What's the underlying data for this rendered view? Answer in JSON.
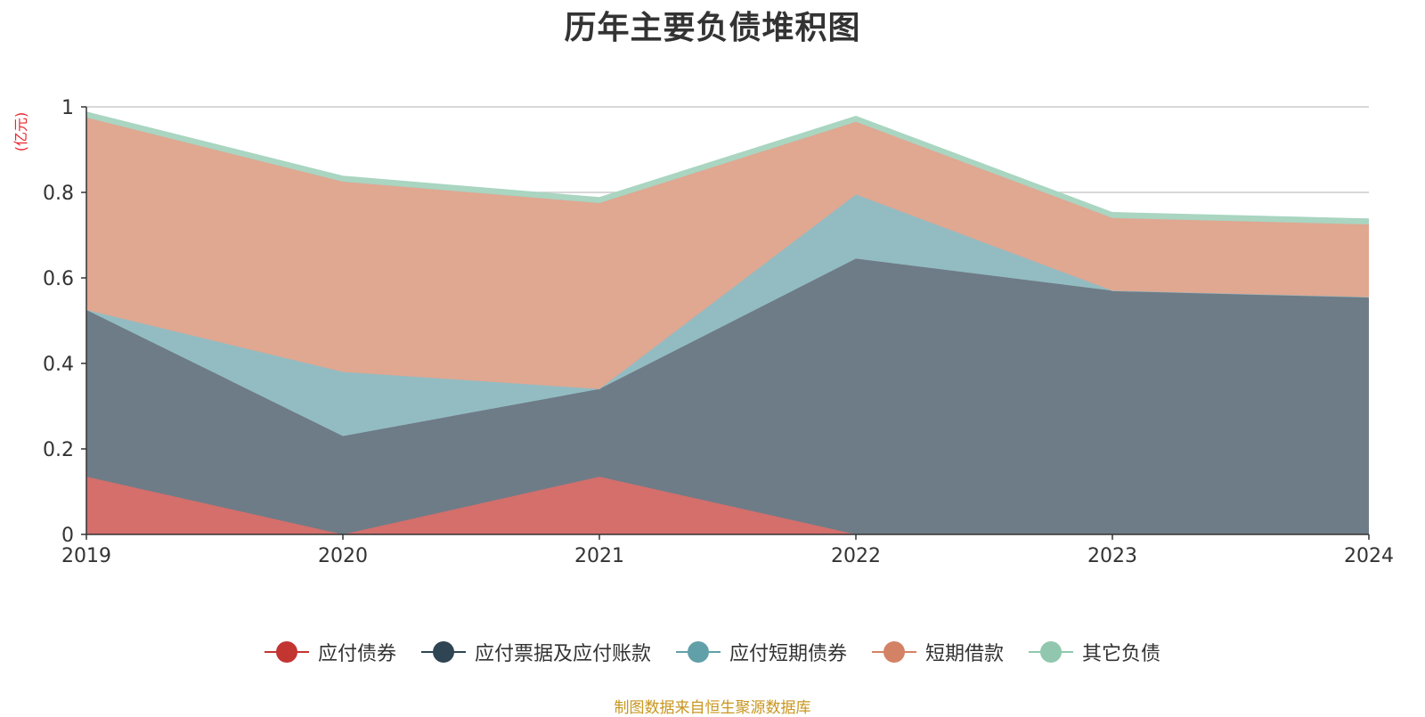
{
  "chart_data": {
    "type": "area",
    "title": "历年主要负债堆积图",
    "unit_label": "(亿元)",
    "x": [
      "2019",
      "2020",
      "2021",
      "2022",
      "2023",
      "2024"
    ],
    "ylim": [
      0,
      1
    ],
    "y_ticks": [
      "0",
      "0.2",
      "0.4",
      "0.6",
      "0.8",
      "1"
    ],
    "grid": true,
    "stacked": true,
    "legend_position": "bottom",
    "series": [
      {
        "name": "应付债券",
        "color": "#c23531",
        "fill": "#d46f6c",
        "values": [
          0.135,
          0.0,
          0.135,
          0.0,
          0.0,
          0.0
        ]
      },
      {
        "name": "应付票据及应付账款",
        "color": "#2f4554",
        "fill": "#6e7c87",
        "values": [
          0.39,
          0.23,
          0.205,
          0.645,
          0.57,
          0.555
        ]
      },
      {
        "name": "应付短期债券",
        "color": "#61a0a8",
        "fill": "#93bcc2",
        "values": [
          0.0,
          0.15,
          0.0,
          0.15,
          0.0,
          0.0
        ]
      },
      {
        "name": "短期借款",
        "color": "#d48265",
        "fill": "#e0a791",
        "values": [
          0.45,
          0.445,
          0.435,
          0.17,
          0.17,
          0.17
        ]
      },
      {
        "name": "其它负债",
        "color": "#91c7ae",
        "fill": "#a9d5c1",
        "values": [
          0.013,
          0.013,
          0.013,
          0.013,
          0.013,
          0.013
        ]
      }
    ],
    "source": "制图数据来自恒生聚源数据库"
  }
}
